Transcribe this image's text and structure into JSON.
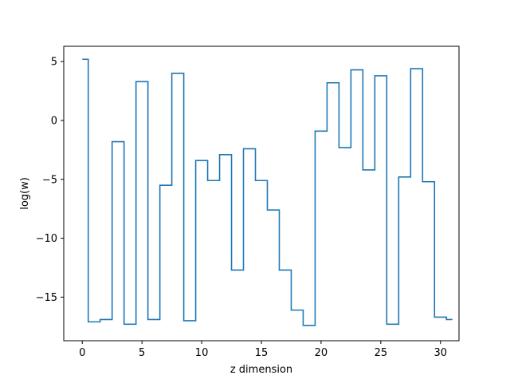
{
  "chart_data": {
    "type": "line",
    "drawstyle": "steps-mid",
    "title": "",
    "xlabel": "z dimension",
    "ylabel": "log(w)",
    "xlim": [
      -1.55,
      31.55
    ],
    "ylim": [
      -18.7,
      6.3
    ],
    "xticks": [
      0,
      5,
      10,
      15,
      20,
      25,
      30
    ],
    "yticks": [
      5,
      0,
      -5,
      -10,
      -15
    ],
    "xtick_labels": [
      "0",
      "5",
      "10",
      "15",
      "20",
      "25",
      "30"
    ],
    "ytick_labels": [
      "5",
      "0",
      "−5",
      "−10",
      "−15"
    ],
    "grid": false,
    "legend": "none",
    "line_color": "#1f77b4",
    "series": [
      {
        "x": [
          0,
          1,
          2,
          3,
          4,
          5,
          6,
          7,
          8,
          9,
          10,
          11,
          12,
          13,
          14,
          15,
          16,
          17,
          18,
          19,
          20,
          21,
          22,
          23,
          24,
          25,
          26,
          27,
          28,
          29,
          30,
          31
        ],
        "values": [
          5.2,
          -17.1,
          -16.9,
          -1.8,
          -17.3,
          3.3,
          -16.9,
          -5.5,
          4.0,
          -17.0,
          -3.4,
          -5.1,
          -2.9,
          -12.7,
          -2.4,
          -5.1,
          -7.6,
          -12.7,
          -16.1,
          -17.4,
          -0.9,
          3.2,
          -2.3,
          4.3,
          -4.2,
          3.8,
          -17.3,
          -4.8,
          4.4,
          -5.2,
          -16.7,
          -16.9
        ]
      }
    ]
  }
}
